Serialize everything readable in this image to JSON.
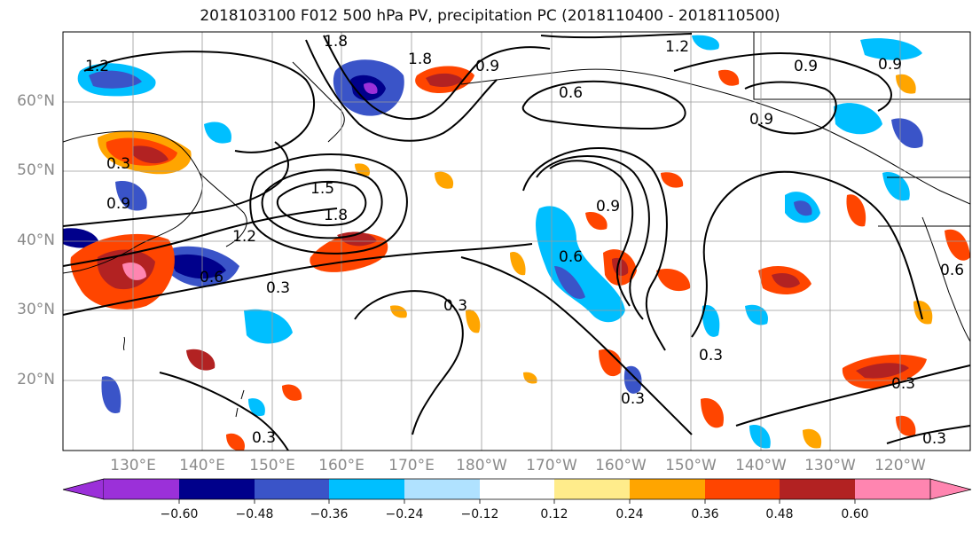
{
  "title": "2018103100 F012 500 hPa PV, precipitation PC (2018110400 - 2018110500)",
  "lat_labels": [
    "60°N",
    "50°N",
    "40°N",
    "30°N",
    "20°N"
  ],
  "lon_labels": [
    "130°E",
    "140°E",
    "150°E",
    "160°E",
    "170°E",
    "180°W",
    "170°W",
    "160°W",
    "150°W",
    "140°W",
    "130°W",
    "120°W"
  ],
  "contour_labels": [
    "1.2",
    "1.8",
    "1.8",
    "0.9",
    "0.6",
    "0.3",
    "0.9",
    "1.5",
    "1.8",
    "1.2",
    "0.6",
    "0.3",
    "0.3",
    "0.9",
    "0.6",
    "0.3",
    "0.3",
    "0.3",
    "0.3",
    "0.3",
    "1.2",
    "0.9",
    "0.9",
    "0.9",
    "0.6"
  ],
  "colorbar": {
    "ticks": [
      "−0.60",
      "−0.48",
      "−0.36",
      "−0.24",
      "−0.12",
      "0.12",
      "0.24",
      "0.36",
      "0.48",
      "0.60"
    ],
    "colors": [
      "#9b30d9",
      "#00008b",
      "#3a54c8",
      "#00bfff",
      "#b0e2ff",
      "#ffffff",
      "#ffec8b",
      "#ffa500",
      "#ff4500",
      "#b22222",
      "#ff85b0"
    ]
  }
}
